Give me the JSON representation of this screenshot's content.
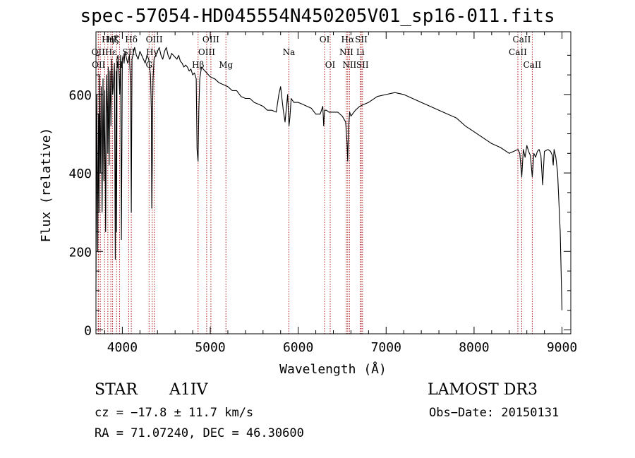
{
  "chart_data": {
    "type": "line",
    "title": "spec-57054-HD045554N450205V01_sp16-011.fits",
    "xlabel": "Wavelength (Å)",
    "ylabel": "Flux (relative)",
    "xlim": [
      3700,
      9100
    ],
    "ylim": [
      -10,
      760
    ],
    "xticks": [
      4000,
      5000,
      6000,
      7000,
      8000,
      9000
    ],
    "yticks": [
      0,
      200,
      400,
      600
    ],
    "series": [
      {
        "name": "spectrum",
        "x": [
          3700,
          3710,
          3720,
          3730,
          3735,
          3740,
          3750,
          3760,
          3770,
          3780,
          3790,
          3800,
          3810,
          3820,
          3830,
          3835,
          3840,
          3850,
          3860,
          3870,
          3880,
          3890,
          3900,
          3910,
          3920,
          3930,
          3935,
          3940,
          3950,
          3960,
          3970,
          3980,
          3990,
          4000,
          4010,
          4020,
          4030,
          4040,
          4050,
          4060,
          4080,
          4095,
          4102,
          4110,
          4120,
          4140,
          4160,
          4180,
          4200,
          4220,
          4240,
          4260,
          4280,
          4300,
          4320,
          4330,
          4335,
          4340,
          4345,
          4350,
          4360,
          4380,
          4400,
          4420,
          4440,
          4460,
          4480,
          4500,
          4520,
          4540,
          4560,
          4580,
          4600,
          4620,
          4640,
          4660,
          4680,
          4700,
          4720,
          4740,
          4760,
          4780,
          4800,
          4820,
          4840,
          4850,
          4861,
          4870,
          4880,
          4900,
          4920,
          4940,
          4960,
          4980,
          5000,
          5050,
          5100,
          5150,
          5200,
          5250,
          5300,
          5350,
          5400,
          5450,
          5500,
          5550,
          5600,
          5650,
          5700,
          5750,
          5780,
          5800,
          5830,
          5850,
          5880,
          5895,
          5905,
          5920,
          5950,
          6000,
          6050,
          6100,
          6150,
          6200,
          6250,
          6280,
          6290,
          6300,
          6320,
          6350,
          6400,
          6450,
          6500,
          6540,
          6555,
          6563,
          6572,
          6585,
          6600,
          6650,
          6700,
          6750,
          6800,
          6900,
          7000,
          7100,
          7200,
          7300,
          7400,
          7500,
          7600,
          7700,
          7800,
          7900,
          8000,
          8100,
          8200,
          8300,
          8400,
          8450,
          8500,
          8520,
          8542,
          8560,
          8580,
          8600,
          8620,
          8640,
          8662,
          8680,
          8700,
          8720,
          8740,
          8760,
          8780,
          8800,
          8840,
          8870,
          8890,
          8900,
          8910,
          8930,
          8950,
          8980,
          8995,
          9000
        ],
        "values": [
          100,
          600,
          200,
          550,
          300,
          650,
          400,
          620,
          300,
          640,
          380,
          610,
          250,
          650,
          550,
          450,
          670,
          420,
          660,
          520,
          690,
          600,
          630,
          680,
          180,
          660,
          250,
          690,
          700,
          660,
          600,
          700,
          230,
          690,
          700,
          680,
          710,
          700,
          690,
          680,
          700,
          620,
          300,
          690,
          700,
          720,
          700,
          690,
          710,
          700,
          690,
          680,
          700,
          690,
          650,
          560,
          310,
          420,
          580,
          640,
          690,
          700,
          710,
          720,
          700,
          690,
          710,
          720,
          700,
          690,
          705,
          700,
          695,
          690,
          700,
          685,
          680,
          670,
          675,
          670,
          660,
          665,
          650,
          655,
          640,
          460,
          430,
          560,
          640,
          670,
          665,
          660,
          655,
          650,
          645,
          640,
          630,
          625,
          620,
          610,
          610,
          595,
          590,
          590,
          580,
          575,
          570,
          560,
          560,
          555,
          600,
          620,
          560,
          530,
          600,
          520,
          540,
          590,
          580,
          580,
          575,
          570,
          565,
          550,
          550,
          570,
          520,
          560,
          560,
          555,
          555,
          555,
          545,
          530,
          480,
          430,
          510,
          555,
          545,
          560,
          570,
          575,
          580,
          595,
          600,
          605,
          600,
          590,
          580,
          570,
          560,
          550,
          540,
          520,
          505,
          490,
          475,
          465,
          450,
          455,
          460,
          450,
          390,
          460,
          440,
          470,
          455,
          445,
          390,
          450,
          440,
          455,
          460,
          445,
          370,
          455,
          460,
          455,
          445,
          420,
          460,
          440,
          400,
          250,
          100,
          50
        ]
      }
    ],
    "line_markers": [
      {
        "x": 3726,
        "label": "OII",
        "row": 2
      },
      {
        "x": 3730,
        "label": "OII",
        "row": 3
      },
      {
        "x": 3750,
        "label": "",
        "row": 0
      },
      {
        "x": 3798,
        "label": "",
        "row": 0
      },
      {
        "x": 3835,
        "label": "Hη",
        "row": 1
      },
      {
        "x": 3869,
        "label": "Hε",
        "row": 2
      },
      {
        "x": 3889,
        "label": "Hζ",
        "row": 1
      },
      {
        "x": 3934,
        "label": "K",
        "row": 1
      },
      {
        "x": 3969,
        "label": "H",
        "row": 3
      },
      {
        "x": 4072,
        "label": "SII",
        "row": 2
      },
      {
        "x": 4102,
        "label": "Hδ",
        "row": 1
      },
      {
        "x": 4304,
        "label": "G",
        "row": 3
      },
      {
        "x": 4340,
        "label": "Hγ",
        "row": 2
      },
      {
        "x": 4363,
        "label": "OIII",
        "row": 1
      },
      {
        "x": 4861,
        "label": "Hβ",
        "row": 3
      },
      {
        "x": 4959,
        "label": "OIII",
        "row": 2
      },
      {
        "x": 5007,
        "label": "OIII",
        "row": 1
      },
      {
        "x": 5178,
        "label": "Mg",
        "row": 3
      },
      {
        "x": 5894,
        "label": "Na",
        "row": 2
      },
      {
        "x": 6300,
        "label": "OI",
        "row": 1
      },
      {
        "x": 6364,
        "label": "OI",
        "row": 3
      },
      {
        "x": 6548,
        "label": "NII",
        "row": 2
      },
      {
        "x": 6563,
        "label": "Hα",
        "row": 1
      },
      {
        "x": 6583,
        "label": "NII",
        "row": 3
      },
      {
        "x": 6707,
        "label": "Li",
        "row": 2
      },
      {
        "x": 6717,
        "label": "SII",
        "row": 1
      },
      {
        "x": 6731,
        "label": "SII",
        "row": 3
      },
      {
        "x": 8498,
        "label": "CaII",
        "row": 2
      },
      {
        "x": 8542,
        "label": "CaII",
        "row": 1
      },
      {
        "x": 8662,
        "label": "CaII",
        "row": 3
      }
    ]
  },
  "info": {
    "class": "STAR",
    "subclass": "A1IV",
    "survey": "LAMOST DR3",
    "cz": "cz = −17.8 ± 11.7 km/s",
    "obs_date": "Obs−Date: 20150131",
    "coords": "RA =  71.07240, DEC =  46.30600"
  }
}
